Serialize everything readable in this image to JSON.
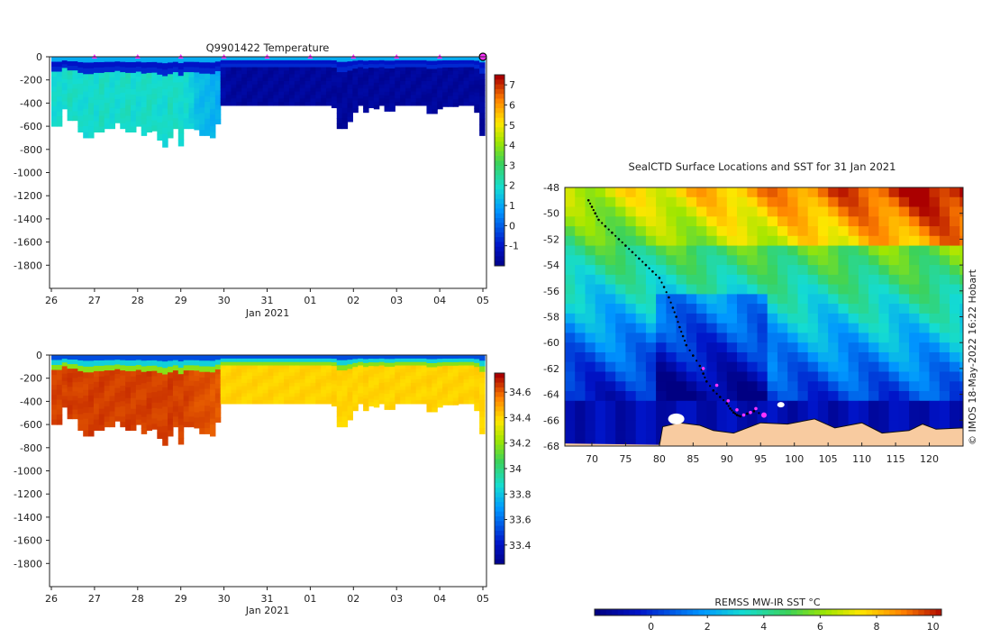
{
  "chart_data": [
    {
      "type": "heatmap",
      "title": "Q9901422  Temperature",
      "xlabel": "Jan 2021",
      "x_ticks": [
        "26",
        "27",
        "28",
        "29",
        "30",
        "31",
        "01",
        "02",
        "03",
        "04",
        "05"
      ],
      "xlim_days": [
        0,
        10
      ],
      "ylim": [
        -2000,
        0
      ],
      "y_ticks": [
        0,
        -200,
        -400,
        -600,
        -800,
        -1000,
        -1200,
        -1400,
        -1600,
        -1800
      ],
      "colorbar": {
        "min": -2,
        "max": 7.5,
        "ticks": [
          7,
          6,
          5,
          4,
          3,
          2,
          1,
          0,
          -1
        ]
      },
      "surface_markers_days": [
        1,
        2,
        3,
        4,
        5,
        6,
        7,
        8,
        9
      ],
      "profile_max_depth": [
        -600,
        -600,
        -450,
        -550,
        -550,
        -650,
        -700,
        -700,
        -650,
        -650,
        -620,
        -620,
        -570,
        -620,
        -650,
        -650,
        -600,
        -680,
        -650,
        -640,
        -720,
        -780,
        -700,
        -620,
        -770,
        -620,
        -620,
        -630,
        -680,
        -680,
        -700,
        -580,
        -420,
        -420,
        -420,
        -420,
        -420,
        -420,
        -420,
        -420,
        -420,
        -420,
        -420,
        -420,
        -420,
        -420,
        -420,
        -420,
        -420,
        -420,
        -420,
        -420,
        -420,
        -440,
        -620,
        -620,
        -560,
        -480,
        -420,
        -480,
        -440,
        -450,
        -420,
        -470,
        -470,
        -420,
        -420,
        -420,
        -420,
        -420,
        -420,
        -490,
        -490,
        -450,
        -430,
        -430,
        -430,
        -420,
        -420,
        -420,
        -480,
        -680
      ],
      "profile_deep_value": [
        2,
        2,
        2,
        2.2,
        2.1,
        2,
        2,
        2.1,
        2,
        2.2,
        2.1,
        2,
        2,
        2.1,
        2.2,
        2,
        2,
        2.1,
        2.2,
        2.1,
        2,
        2,
        2.2,
        2.1,
        2,
        2,
        1.8,
        1.5,
        1.4,
        1.4,
        1.3,
        1.2,
        -1.4,
        -1.5,
        -1.6,
        -1.6,
        -1.6,
        -1.6,
        -1.6,
        -1.6,
        -1.6,
        -1.6,
        -1.6,
        -1.6,
        -1.6,
        -1.6,
        -1.6,
        -1.6,
        -1.6,
        -1.6,
        -1.6,
        -1.6,
        -1.6,
        -1.6,
        -1.6,
        -1.6,
        -1.6,
        -1.6,
        -1.6,
        -1.6,
        -1.6,
        -1.6,
        -1.6,
        -1.6,
        -1.6,
        -1.6,
        -1.6,
        -1.6,
        -1.6,
        -1.6,
        -1.6,
        -1.6,
        -1.6,
        -1.6,
        -1.6,
        -1.6,
        -1.6,
        -1.6,
        -1.6,
        -1.6,
        -1.6,
        -1.6
      ]
    },
    {
      "type": "heatmap",
      "title": "",
      "xlabel": "Jan 2021",
      "x_ticks": [
        "26",
        "27",
        "28",
        "29",
        "30",
        "31",
        "01",
        "02",
        "03",
        "04",
        "05"
      ],
      "xlim_days": [
        0,
        10
      ],
      "ylim": [
        -2000,
        0
      ],
      "y_ticks": [
        0,
        -200,
        -400,
        -600,
        -800,
        -1000,
        -1200,
        -1400,
        -1600,
        -1800
      ],
      "colorbar": {
        "min": 33.25,
        "max": 34.75,
        "ticks": [
          "34.6",
          "34.4",
          "34.2",
          "34",
          "33.8",
          "33.6",
          "33.4"
        ]
      },
      "profile_max_depth": [
        -600,
        -600,
        -450,
        -550,
        -550,
        -650,
        -700,
        -700,
        -650,
        -650,
        -620,
        -620,
        -570,
        -620,
        -650,
        -650,
        -600,
        -680,
        -650,
        -640,
        -720,
        -780,
        -700,
        -620,
        -770,
        -620,
        -620,
        -630,
        -680,
        -680,
        -700,
        -580,
        -420,
        -420,
        -420,
        -420,
        -420,
        -420,
        -420,
        -420,
        -420,
        -420,
        -420,
        -420,
        -420,
        -420,
        -420,
        -420,
        -420,
        -420,
        -420,
        -420,
        -420,
        -440,
        -620,
        -620,
        -560,
        -480,
        -420,
        -480,
        -440,
        -450,
        -420,
        -470,
        -470,
        -420,
        -420,
        -420,
        -420,
        -420,
        -420,
        -490,
        -490,
        -450,
        -430,
        -430,
        -430,
        -420,
        -420,
        -420,
        -480,
        -680
      ],
      "profile_deep_value": [
        34.66,
        34.66,
        34.66,
        34.67,
        34.66,
        34.66,
        34.66,
        34.67,
        34.66,
        34.67,
        34.66,
        34.66,
        34.66,
        34.66,
        34.67,
        34.66,
        34.66,
        34.66,
        34.67,
        34.66,
        34.66,
        34.66,
        34.67,
        34.66,
        34.66,
        34.66,
        34.65,
        34.64,
        34.64,
        34.64,
        34.63,
        34.63,
        34.42,
        34.42,
        34.43,
        34.43,
        34.42,
        34.42,
        34.43,
        34.42,
        34.42,
        34.43,
        34.42,
        34.42,
        34.43,
        34.42,
        34.42,
        34.43,
        34.42,
        34.42,
        34.43,
        34.42,
        34.42,
        34.43,
        34.42,
        34.42,
        34.43,
        34.42,
        34.42,
        34.43,
        34.42,
        34.42,
        34.43,
        34.42,
        34.42,
        34.43,
        34.42,
        34.42,
        34.43,
        34.42,
        34.42,
        34.43,
        34.42,
        34.42,
        34.43,
        34.42,
        34.42,
        34.43,
        34.42,
        34.42,
        34.43,
        34.42
      ]
    },
    {
      "type": "heatmap",
      "title": "SealCTD Surface Locations and SST for 31 Jan 2021",
      "xlim": [
        66,
        125
      ],
      "ylim": [
        -68,
        -48
      ],
      "x_ticks": [
        "70",
        "75",
        "80",
        "85",
        "90",
        "95",
        "100",
        "105",
        "110",
        "115",
        "120"
      ],
      "y_ticks": [
        "-48",
        "-50",
        "-52",
        "-54",
        "-56",
        "-58",
        "-60",
        "-62",
        "-64",
        "-66",
        "-68"
      ],
      "track_lon": [
        69.5,
        70,
        70.5,
        71,
        72,
        73,
        74,
        75,
        76,
        77,
        78,
        79,
        80,
        80.7,
        81.4,
        82,
        82.5,
        83,
        83.5,
        84,
        85,
        86,
        86.5,
        87,
        88,
        89,
        90,
        90.5,
        91,
        91.5,
        92,
        93,
        94,
        95.5
      ],
      "track_lat": [
        -49,
        -49.5,
        -50,
        -50.5,
        -51,
        -51.5,
        -52,
        -52.5,
        -53,
        -53.5,
        -54,
        -54.5,
        -55,
        -55.7,
        -56.5,
        -57.3,
        -58,
        -58.8,
        -59.5,
        -60.2,
        -61,
        -61.8,
        -62.4,
        -63,
        -63.7,
        -64.2,
        -64.7,
        -65.1,
        -65.4,
        -65.6,
        -65.7,
        -65.5,
        -65.3,
        -65.6
      ],
      "profile_marker_lon": [
        86.5,
        88.5,
        90.2,
        91.5,
        92.5,
        93.5,
        94.3,
        95.5
      ],
      "profile_marker_lat": [
        -62,
        -63.3,
        -64.5,
        -65.2,
        -65.6,
        -65.4,
        -65.1,
        -65.6
      ],
      "credit": "© IMOS 18-May-2022 16:22 Hobart",
      "colorbar_label": "REMSS MW-IR SST °C",
      "colorbar": {
        "min": -2,
        "max": 10.3,
        "ticks": [
          "0",
          "2",
          "4",
          "6",
          "8",
          "10"
        ]
      }
    }
  ],
  "colors": {
    "land": "#f8cba0",
    "marker": "#ff33ff",
    "track": "#000000"
  }
}
